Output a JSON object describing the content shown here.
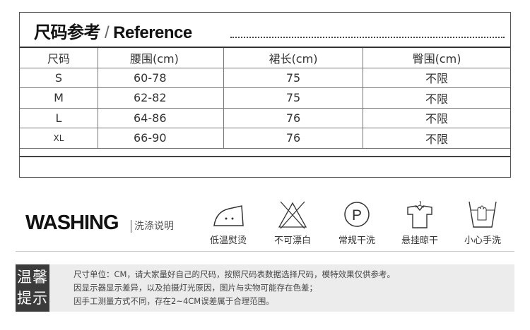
{
  "size_chart": {
    "title": "尺码参考",
    "separator": "/",
    "title_en": "Reference",
    "headers": [
      "尺码",
      "腰围(cm)",
      "裙长(cm)",
      "臀围(cm)"
    ],
    "rows": [
      [
        "S",
        "60-78",
        "75",
        "不限"
      ],
      [
        "M",
        "62-82",
        "75",
        "不限"
      ],
      [
        "L",
        "64-86",
        "76",
        "不限"
      ],
      [
        "XL",
        "66-90",
        "76",
        "不限"
      ]
    ]
  },
  "washing": {
    "title": "WASHING",
    "subtitle": "洗涤说明",
    "items": [
      {
        "icon": "iron-low-icon",
        "label": "低温熨烫"
      },
      {
        "icon": "no-bleach-icon",
        "label": "不可漂白"
      },
      {
        "icon": "dry-clean-p-icon",
        "label": "常规干洗"
      },
      {
        "icon": "hang-dry-icon",
        "label": "悬挂晾干"
      },
      {
        "icon": "hand-wash-icon",
        "label": "小心手洗"
      }
    ]
  },
  "tips": {
    "label_line1": "温馨",
    "label_line2": "提示",
    "lines": [
      "尺寸单位：CM，请大家量好自己的尺码，按照尺码表数据选择尺码，模特效果仅供参考。",
      "因显示器显示差异，以及拍摄灯光原因，图片与实物可能存在色差；",
      "因手工测量方式不同，存在2~4CM误差属于合理范围。"
    ]
  }
}
